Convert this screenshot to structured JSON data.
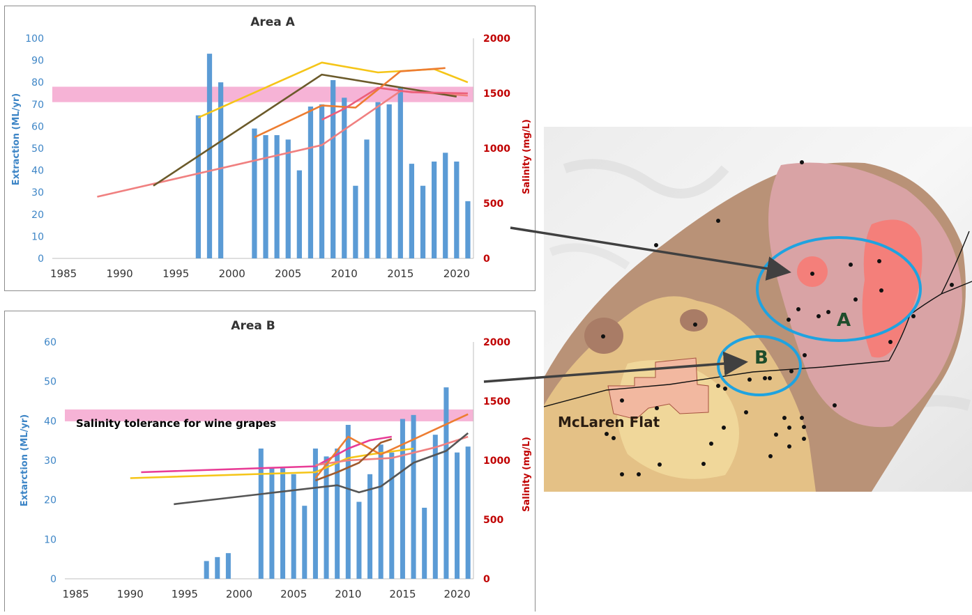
{
  "chart_data": [
    {
      "type": "bar",
      "title": "Area  A",
      "ylabel": "Extraction  (ML/yr)",
      "y2label": "Salinity (mg/L)",
      "ylim": [
        0,
        100
      ],
      "y2lim": [
        0,
        2000
      ],
      "yticks": [
        0,
        10,
        20,
        30,
        40,
        50,
        60,
        70,
        80,
        90,
        100
      ],
      "y2ticks": [
        0,
        500,
        1000,
        1500,
        2000
      ],
      "xticks": [
        1985,
        1990,
        1995,
        2000,
        2005,
        2010,
        2015,
        2020
      ],
      "xlim": [
        1984,
        2021.5
      ],
      "band": {
        "from": 1420,
        "to": 1560,
        "color": "#f5a6cf"
      },
      "bars": {
        "color": "#5b9bd5",
        "x": [
          1997,
          1998,
          1999,
          2002,
          2003,
          2004,
          2005,
          2006,
          2007,
          2008,
          2009,
          2010,
          2011,
          2012,
          2013,
          2014,
          2015,
          2016,
          2017,
          2018,
          2019,
          2020,
          2021
        ],
        "values": [
          65,
          93,
          80,
          59,
          56,
          56,
          54,
          40,
          69,
          70,
          81,
          73,
          33,
          54,
          71,
          70,
          78,
          43,
          33,
          44,
          48,
          44,
          26
        ]
      },
      "series": [
        {
          "color": "#f08080",
          "x": [
            1988,
            2008,
            2015,
            2021
          ],
          "values": [
            560,
            1030,
            1520,
            1480
          ]
        },
        {
          "color": "#f5c518",
          "x": [
            1997,
            2008,
            2013,
            2018,
            2021
          ],
          "values": [
            1280,
            1780,
            1690,
            1720,
            1600
          ]
        },
        {
          "color": "#6b5a2a",
          "x": [
            1993,
            2008,
            2020
          ],
          "values": [
            660,
            1670,
            1470
          ]
        },
        {
          "color": "#ed7d31",
          "x": [
            2002,
            2008,
            2011,
            2015,
            2019
          ],
          "values": [
            1100,
            1390,
            1370,
            1700,
            1730
          ]
        },
        {
          "color": "#ec5f7a",
          "x": [
            2008,
            2010,
            2013,
            2016,
            2021
          ],
          "values": [
            1260,
            1360,
            1550,
            1510,
            1500
          ]
        }
      ]
    },
    {
      "type": "bar",
      "title": "Area  B",
      "ylabel": "Extarction (ML/yr)",
      "y2label": "Salinity (mg/L)",
      "ylim": [
        0,
        60
      ],
      "y2lim": [
        0,
        2000
      ],
      "yticks": [
        0,
        10,
        20,
        30,
        40,
        50,
        60
      ],
      "y2ticks": [
        0,
        500,
        1000,
        1500,
        2000
      ],
      "xticks": [
        1985,
        1990,
        1995,
        2000,
        2005,
        2010,
        2015,
        2020
      ],
      "xlim": [
        1984,
        2021.5
      ],
      "band": {
        "from": 1330,
        "to": 1430,
        "color": "#f5a6cf"
      },
      "annotation": "Salinity tolerance for wine grapes",
      "bars": {
        "color": "#5b9bd5",
        "x": [
          1997,
          1998,
          1999,
          2002,
          2003,
          2004,
          2005,
          2006,
          2007,
          2008,
          2009,
          2010,
          2011,
          2012,
          2013,
          2014,
          2015,
          2016,
          2017,
          2018,
          2019,
          2020,
          2021
        ],
        "values": [
          4.5,
          5.5,
          6.5,
          33,
          28,
          28,
          26.5,
          18.5,
          33,
          31,
          33,
          39,
          19.5,
          26.5,
          34,
          32,
          40.5,
          41.5,
          18,
          36.5,
          48.5,
          32,
          33.5
        ]
      },
      "series": [
        {
          "color": "#e83c96",
          "x": [
            1991,
            2007,
            2010,
            2012,
            2014
          ],
          "values": [
            900,
            950,
            1100,
            1170,
            1200
          ]
        },
        {
          "color": "#f5c518",
          "x": [
            1990,
            2007,
            2010,
            2012,
            2016
          ],
          "values": [
            850,
            900,
            1020,
            1050,
            1100
          ]
        },
        {
          "color": "#f08080",
          "x": [
            2007,
            2010,
            2014,
            2018,
            2021
          ],
          "values": [
            960,
            1000,
            1020,
            1110,
            1200
          ]
        },
        {
          "color": "#555555",
          "x": [
            1994,
            2009,
            2011,
            2013,
            2016,
            2019,
            2021
          ],
          "values": [
            630,
            790,
            730,
            780,
            980,
            1080,
            1230
          ]
        },
        {
          "color": "#ed7d31",
          "x": [
            2007,
            2010,
            2012,
            2013,
            2021
          ],
          "values": [
            850,
            1200,
            1100,
            1050,
            1390
          ]
        },
        {
          "color": "#a05a2c",
          "x": [
            2007,
            2009,
            2011,
            2013,
            2014
          ],
          "values": [
            830,
            900,
            980,
            1150,
            1180
          ]
        }
      ]
    }
  ],
  "map": {
    "place_label": "McLaren Flat",
    "area_a_label": "A",
    "area_b_label": "B",
    "circle_color": "#1fa3e0",
    "label_color": "#1e4d2b"
  }
}
